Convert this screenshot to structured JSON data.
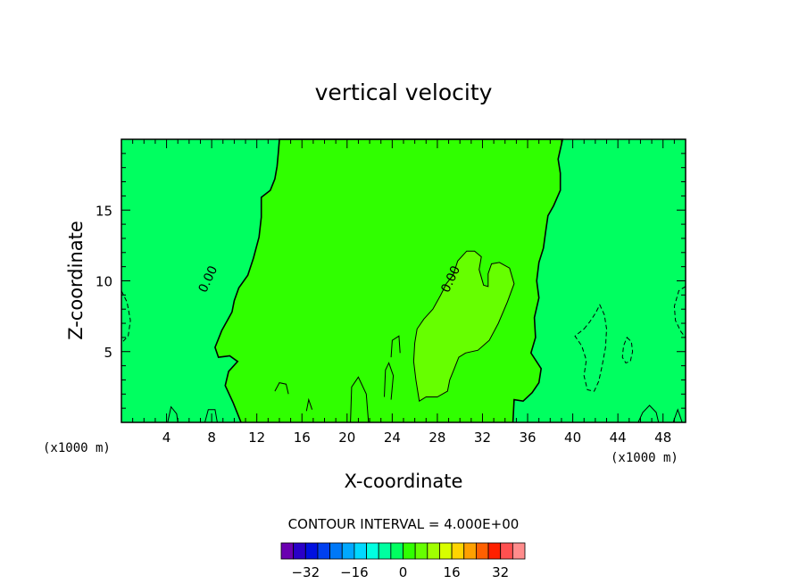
{
  "chart_data": {
    "type": "heatmap",
    "title": "vertical velocity",
    "xlabel": "X-coordinate",
    "ylabel": "Z-coordinate",
    "x_unit": "(x1000 m)",
    "xlim": [
      0,
      50
    ],
    "ylim": [
      0,
      20
    ],
    "x_ticks": [
      4,
      8,
      12,
      16,
      20,
      24,
      28,
      32,
      36,
      40,
      44,
      48
    ],
    "y_ticks": [
      5,
      10,
      15
    ],
    "background_value": -2,
    "regions": [
      {
        "name": "central-updraft-band",
        "value": 0.5,
        "color": "#30ff00"
      },
      {
        "name": "upper-plume",
        "value": 4,
        "color": "#66ff00"
      },
      {
        "name": "right-downdraft",
        "value": -6,
        "color": "#00ff66"
      },
      {
        "name": "right-small-downdraft",
        "value": -4,
        "color": "#00ff66"
      },
      {
        "name": "left-edge-downdraft",
        "value": -4,
        "color": "#00ff66"
      },
      {
        "name": "right-edge-downdraft",
        "value": -4,
        "color": "#00ff66"
      }
    ],
    "contour_labels": [
      {
        "text": "0.00",
        "x": 8,
        "z": 10
      },
      {
        "text": "0.00",
        "x": 29.5,
        "z": 10
      }
    ],
    "contour_interval_text": "CONTOUR INTERVAL = 4.000E+00",
    "colorbar": {
      "levels": [
        -36,
        -32,
        -28,
        -24,
        -20,
        -16,
        -12,
        -8,
        -4,
        0,
        4,
        8,
        12,
        16,
        20,
        24,
        28,
        32,
        36
      ],
      "colors": [
        "#6a00b0",
        "#2a00c8",
        "#0010e0",
        "#0040f0",
        "#0078f8",
        "#00a8ff",
        "#00d8ff",
        "#00ffe0",
        "#00ffa0",
        "#00ff60",
        "#30ff00",
        "#66ff00",
        "#a0ff00",
        "#d8ff00",
        "#ffd400",
        "#ffa000",
        "#ff6000",
        "#ff2000",
        "#ff5050",
        "#ff8c8c"
      ],
      "tick_labels": [
        "-32",
        "-16",
        "0",
        "16",
        "32"
      ]
    }
  }
}
